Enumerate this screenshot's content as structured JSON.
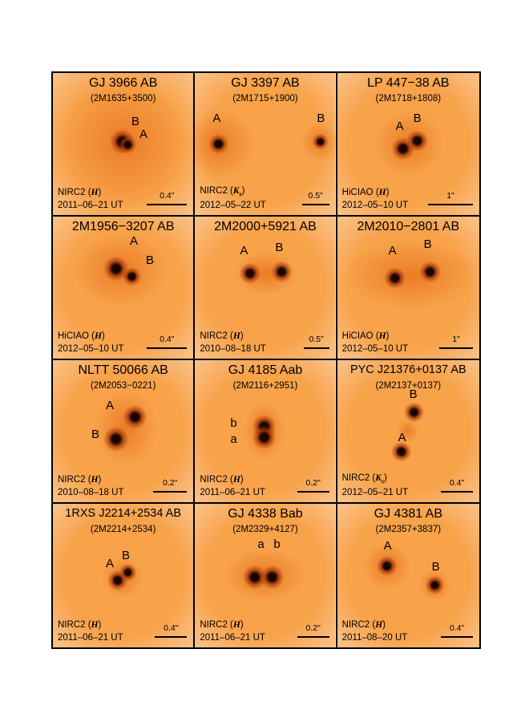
{
  "panels": [
    {
      "title": "GJ 3966 AB",
      "subtitle": "(2M1635+3500)",
      "filter": "H",
      "date": "2011–06–21 UT",
      "scale": "0.4\"",
      "labels": [
        "B",
        "A"
      ]
    },
    {
      "title": "GJ 3397 AB",
      "subtitle": "(2M1715+1900)",
      "filter": "Ks",
      "date": "2012–05–22 UT",
      "scale": "0.5\"",
      "labels": [
        "A",
        "B"
      ]
    },
    {
      "title": "LP 447−38 AB",
      "subtitle": "(2M1718+1808)",
      "filter": "H",
      "date": "2012–05–10 UT",
      "scale": "1\"",
      "labels": [
        "A",
        "B"
      ]
    },
    {
      "title": "2M1956−3207 AB",
      "subtitle": "",
      "filter": "H",
      "date": "2012–05–10 UT",
      "scale": "0.4\"",
      "labels": [
        "A",
        "B"
      ]
    },
    {
      "title": "2M2000+5921 AB",
      "subtitle": "",
      "filter": "H",
      "date": "2010–08–18 UT",
      "scale": "0.5\"",
      "labels": [
        "A",
        "B"
      ]
    },
    {
      "title": "2M2010−2801 AB",
      "subtitle": "",
      "filter": "H",
      "date": "2012–05–10 UT",
      "scale": "1\"",
      "labels": [
        "A",
        "B"
      ]
    },
    {
      "title": "NLTT 50066 AB",
      "subtitle": "(2M2053−0221)",
      "filter": "H",
      "date": "2010–08–18 UT",
      "scale": "0.2\"",
      "labels": [
        "B",
        "A"
      ]
    },
    {
      "title": "GJ 4185 Aab",
      "subtitle": "(2M2116+2951)",
      "filter": "H",
      "date": "2011–06–21 UT",
      "scale": "0.2\"",
      "labels": [
        "b",
        "a"
      ]
    },
    {
      "title": "PYC J21376+0137 AB",
      "subtitle": "(2M2137+0137)",
      "filter": "Ks",
      "date": "2012–05–21 UT",
      "scale": "0.4\"",
      "labels": [
        "B",
        "A"
      ]
    },
    {
      "title": "1RXS J2214+2534 AB",
      "subtitle": "(2M2214+2534)",
      "filter": "H",
      "date": "2011–06–21 UT",
      "scale": "0.4\"",
      "labels": [
        "A",
        "B"
      ]
    },
    {
      "title": "GJ 4338 Bab",
      "subtitle": "(2M2329+4127)",
      "filter": "H",
      "date": "2011–06–21 UT",
      "scale": "0.2\"",
      "labels": [
        "a",
        "b"
      ]
    },
    {
      "title": "GJ 4381 AB",
      "subtitle": "(2M2357+3837)",
      "filter": "H",
      "date": "2011–08–20 UT",
      "scale": "0.4\"",
      "labels": [
        "A",
        "B"
      ]
    }
  ],
  "instruments": [
    "NIRC2",
    "NIRC2",
    "HiCIAO",
    "HiCIAO",
    "NIRC2",
    "HiCIAO",
    "NIRC2",
    "NIRC2",
    "NIRC2",
    "NIRC2",
    "NIRC2",
    "NIRC2"
  ],
  "colors": {
    "background": "#f8a24a",
    "glow": "#e8761f",
    "core": "#1a0400",
    "halo": "#a8380a"
  }
}
